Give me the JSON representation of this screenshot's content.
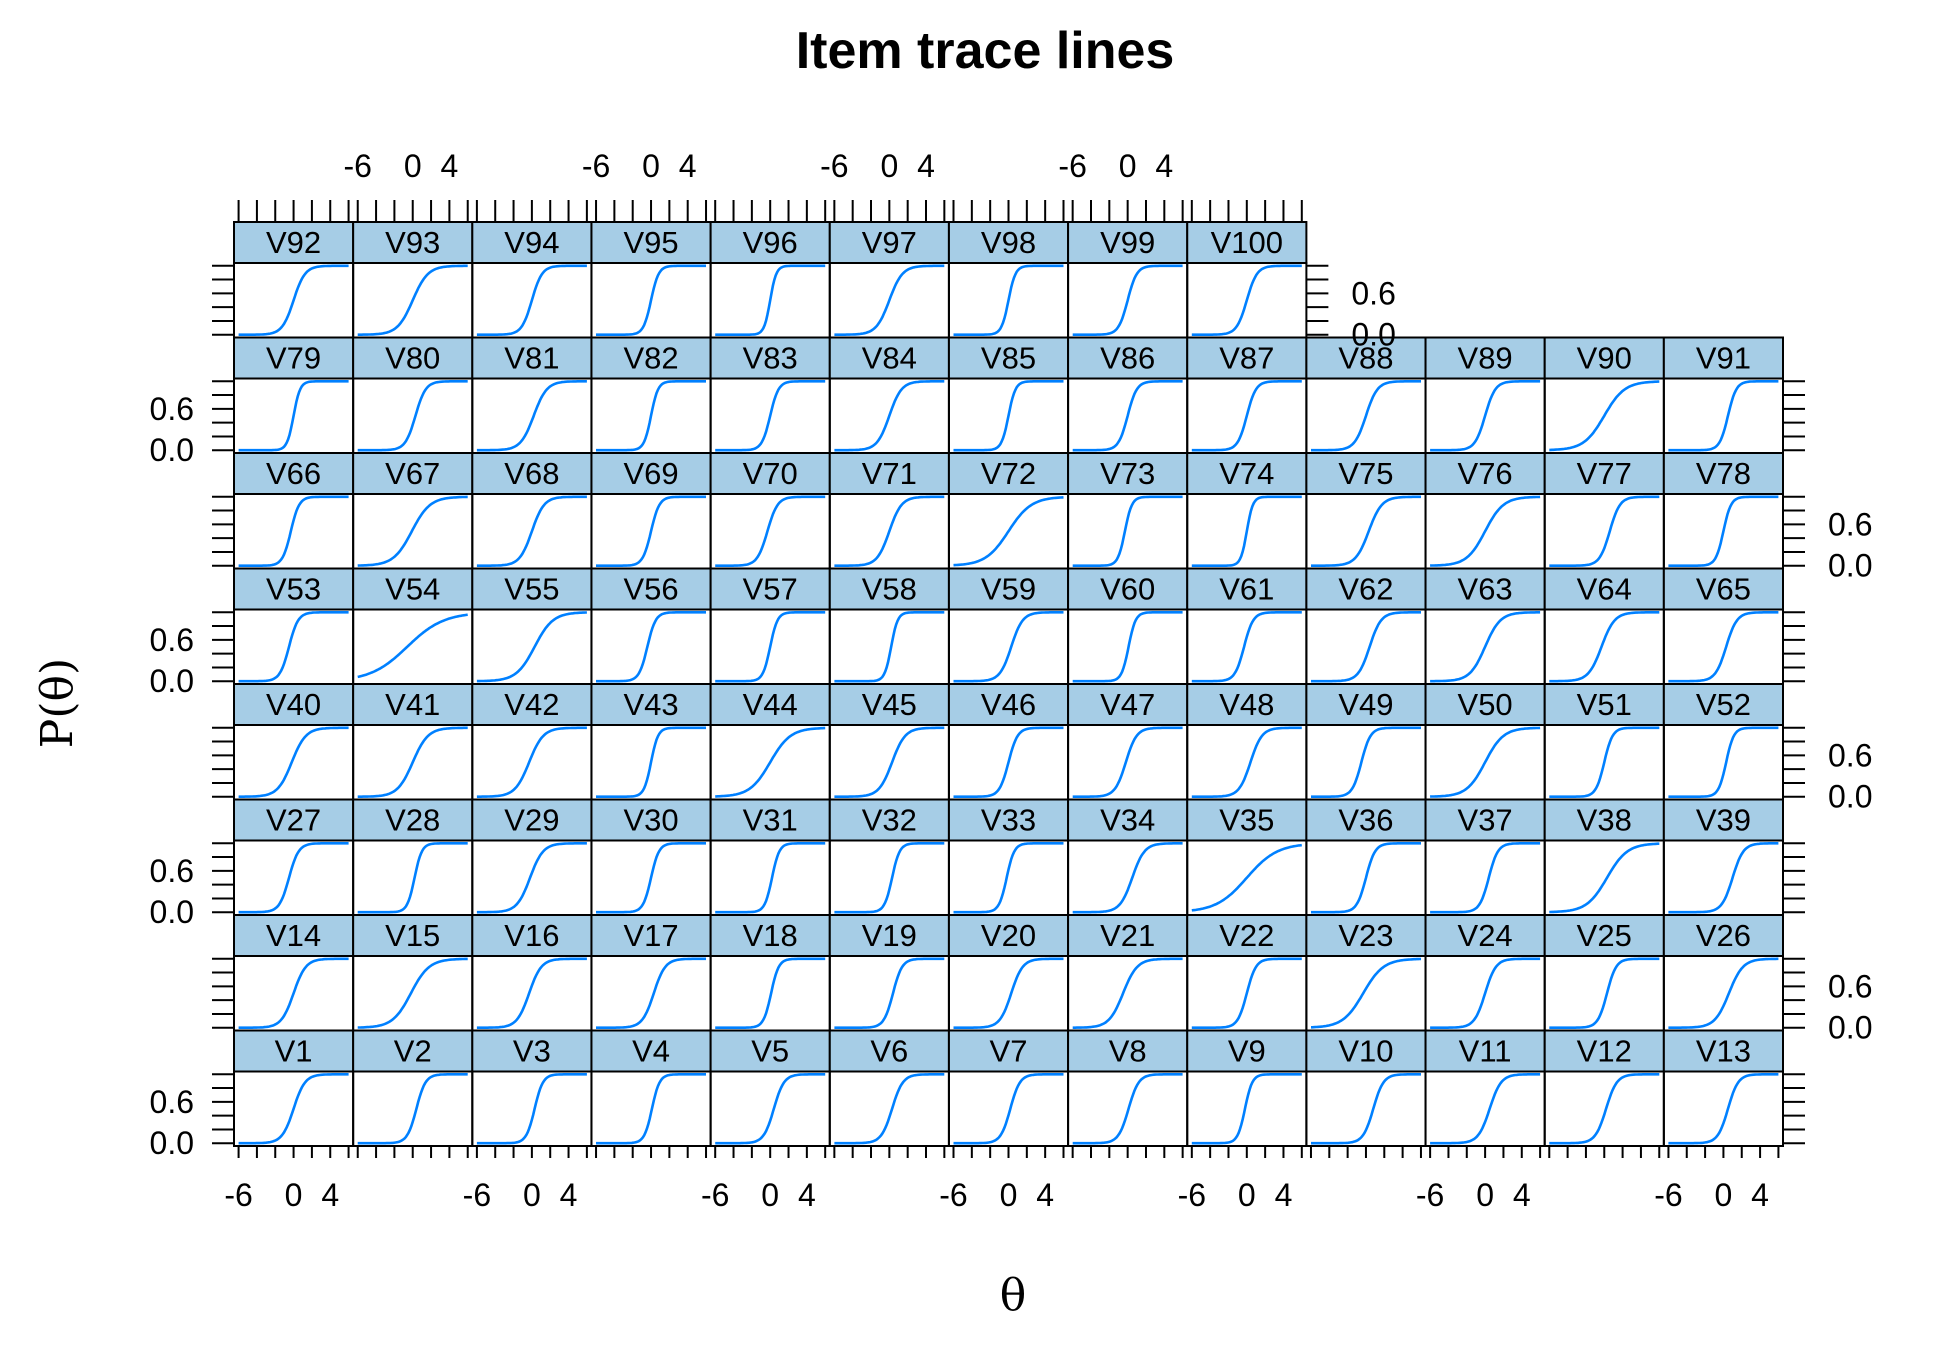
{
  "chart_data": {
    "type": "line",
    "title": "Item trace lines",
    "xlabel": "θ",
    "ylabel": "P(θ)",
    "xlim": [
      -6.5,
      6.5
    ],
    "ylim": [
      -0.04,
      1.04
    ],
    "x_tick_labels": [
      "-6",
      "0",
      "4"
    ],
    "y_tick_labels": [
      "0.0",
      "0.6"
    ],
    "grid": false,
    "layout": {
      "columns": 13,
      "rows": 8
    },
    "series_color": "#0080ff",
    "strip_color": "#a6cde6",
    "series": [
      {
        "name": "V1",
        "a": 1.6,
        "b": 0.0
      },
      {
        "name": "V2",
        "a": 2.0,
        "b": 0.4
      },
      {
        "name": "V3",
        "a": 2.2,
        "b": 0.3
      },
      {
        "name": "V4",
        "a": 2.4,
        "b": 0.1
      },
      {
        "name": "V5",
        "a": 1.8,
        "b": 0.4
      },
      {
        "name": "V6",
        "a": 1.7,
        "b": 0.3
      },
      {
        "name": "V7",
        "a": 1.9,
        "b": 0.2
      },
      {
        "name": "V8",
        "a": 1.8,
        "b": 0.1
      },
      {
        "name": "V9",
        "a": 2.5,
        "b": -0.2
      },
      {
        "name": "V10",
        "a": 1.8,
        "b": 0.8
      },
      {
        "name": "V11",
        "a": 1.6,
        "b": 0.5
      },
      {
        "name": "V12",
        "a": 1.7,
        "b": 0.2
      },
      {
        "name": "V13",
        "a": 1.8,
        "b": 0.5
      },
      {
        "name": "V14",
        "a": 1.5,
        "b": 0.0
      },
      {
        "name": "V15",
        "a": 1.0,
        "b": -0.2
      },
      {
        "name": "V16",
        "a": 1.5,
        "b": -0.3
      },
      {
        "name": "V17",
        "a": 1.6,
        "b": 0.3
      },
      {
        "name": "V18",
        "a": 2.4,
        "b": 0.1
      },
      {
        "name": "V19",
        "a": 2.0,
        "b": 0.4
      },
      {
        "name": "V20",
        "a": 1.6,
        "b": 0.3
      },
      {
        "name": "V21",
        "a": 1.3,
        "b": -0.5
      },
      {
        "name": "V22",
        "a": 2.0,
        "b": 0.0
      },
      {
        "name": "V23",
        "a": 0.9,
        "b": -0.3
      },
      {
        "name": "V24",
        "a": 1.7,
        "b": 0.0
      },
      {
        "name": "V25",
        "a": 2.0,
        "b": 0.3
      },
      {
        "name": "V26",
        "a": 1.3,
        "b": 0.6
      },
      {
        "name": "V27",
        "a": 1.9,
        "b": -0.5
      },
      {
        "name": "V28",
        "a": 2.5,
        "b": 0.2
      },
      {
        "name": "V29",
        "a": 1.4,
        "b": -0.2
      },
      {
        "name": "V30",
        "a": 2.3,
        "b": 0.0
      },
      {
        "name": "V31",
        "a": 2.5,
        "b": 0.2
      },
      {
        "name": "V32",
        "a": 2.4,
        "b": 0.3
      },
      {
        "name": "V33",
        "a": 2.4,
        "b": -0.2
      },
      {
        "name": "V34",
        "a": 1.5,
        "b": 0.5
      },
      {
        "name": "V35",
        "a": 0.6,
        "b": 0.0
      },
      {
        "name": "V36",
        "a": 2.0,
        "b": 0.0
      },
      {
        "name": "V37",
        "a": 2.0,
        "b": 0.4
      },
      {
        "name": "V38",
        "a": 0.9,
        "b": 0.3
      },
      {
        "name": "V39",
        "a": 1.7,
        "b": 1.0
      },
      {
        "name": "V40",
        "a": 1.3,
        "b": -0.2
      },
      {
        "name": "V41",
        "a": 1.2,
        "b": 0.0
      },
      {
        "name": "V42",
        "a": 1.3,
        "b": -0.3
      },
      {
        "name": "V43",
        "a": 2.6,
        "b": 0.0
      },
      {
        "name": "V44",
        "a": 0.9,
        "b": 0.0
      },
      {
        "name": "V45",
        "a": 1.4,
        "b": 0.3
      },
      {
        "name": "V46",
        "a": 2.0,
        "b": 0.0
      },
      {
        "name": "V47",
        "a": 1.7,
        "b": -0.2
      },
      {
        "name": "V48",
        "a": 1.6,
        "b": 0.4
      },
      {
        "name": "V49",
        "a": 2.0,
        "b": -0.5
      },
      {
        "name": "V50",
        "a": 1.0,
        "b": 0.0
      },
      {
        "name": "V51",
        "a": 2.2,
        "b": 0.0
      },
      {
        "name": "V52",
        "a": 2.4,
        "b": 0.3
      },
      {
        "name": "V53",
        "a": 2.0,
        "b": -0.5
      },
      {
        "name": "V54",
        "a": 0.5,
        "b": -0.6
      },
      {
        "name": "V55",
        "a": 1.0,
        "b": 0.3
      },
      {
        "name": "V56",
        "a": 2.2,
        "b": -0.4
      },
      {
        "name": "V57",
        "a": 2.5,
        "b": 0.0
      },
      {
        "name": "V58",
        "a": 2.8,
        "b": 0.2
      },
      {
        "name": "V59",
        "a": 1.6,
        "b": 0.3
      },
      {
        "name": "V60",
        "a": 2.6,
        "b": 0.1
      },
      {
        "name": "V61",
        "a": 2.0,
        "b": -0.3
      },
      {
        "name": "V62",
        "a": 1.6,
        "b": 0.4
      },
      {
        "name": "V63",
        "a": 1.2,
        "b": 0.0
      },
      {
        "name": "V64",
        "a": 1.4,
        "b": -0.3
      },
      {
        "name": "V65",
        "a": 1.7,
        "b": 0.3
      },
      {
        "name": "V66",
        "a": 2.2,
        "b": -0.3
      },
      {
        "name": "V67",
        "a": 1.0,
        "b": -0.1
      },
      {
        "name": "V68",
        "a": 1.5,
        "b": 0.0
      },
      {
        "name": "V69",
        "a": 2.2,
        "b": 0.0
      },
      {
        "name": "V70",
        "a": 1.8,
        "b": -0.3
      },
      {
        "name": "V71",
        "a": 1.5,
        "b": 0.0
      },
      {
        "name": "V72",
        "a": 0.8,
        "b": 0.0
      },
      {
        "name": "V73",
        "a": 2.6,
        "b": -0.3
      },
      {
        "name": "V74",
        "a": 3.0,
        "b": 0.0
      },
      {
        "name": "V75",
        "a": 1.4,
        "b": 0.3
      },
      {
        "name": "V76",
        "a": 1.0,
        "b": 0.0
      },
      {
        "name": "V77",
        "a": 1.8,
        "b": 0.6
      },
      {
        "name": "V78",
        "a": 2.4,
        "b": 0.0
      },
      {
        "name": "V79",
        "a": 2.8,
        "b": 0.0
      },
      {
        "name": "V80",
        "a": 1.8,
        "b": 0.3
      },
      {
        "name": "V81",
        "a": 1.4,
        "b": 0.2
      },
      {
        "name": "V82",
        "a": 2.6,
        "b": 0.0
      },
      {
        "name": "V83",
        "a": 2.2,
        "b": 0.0
      },
      {
        "name": "V84",
        "a": 1.5,
        "b": 0.0
      },
      {
        "name": "V85",
        "a": 2.6,
        "b": 0.0
      },
      {
        "name": "V86",
        "a": 2.0,
        "b": 0.0
      },
      {
        "name": "V87",
        "a": 2.0,
        "b": 0.0
      },
      {
        "name": "V88",
        "a": 1.6,
        "b": 0.0
      },
      {
        "name": "V89",
        "a": 1.8,
        "b": 0.0
      },
      {
        "name": "V90",
        "a": 0.9,
        "b": 0.0
      },
      {
        "name": "V91",
        "a": 2.2,
        "b": 0.5
      },
      {
        "name": "V92",
        "a": 1.6,
        "b": 0.0
      },
      {
        "name": "V93",
        "a": 1.2,
        "b": 0.0
      },
      {
        "name": "V94",
        "a": 1.8,
        "b": 0.0
      },
      {
        "name": "V95",
        "a": 2.4,
        "b": 0.0
      },
      {
        "name": "V96",
        "a": 3.0,
        "b": 0.0
      },
      {
        "name": "V97",
        "a": 1.4,
        "b": 0.0
      },
      {
        "name": "V98",
        "a": 2.6,
        "b": 0.0
      },
      {
        "name": "V99",
        "a": 2.0,
        "b": 0.0
      },
      {
        "name": "V100",
        "a": 1.8,
        "b": 0.0
      }
    ]
  }
}
